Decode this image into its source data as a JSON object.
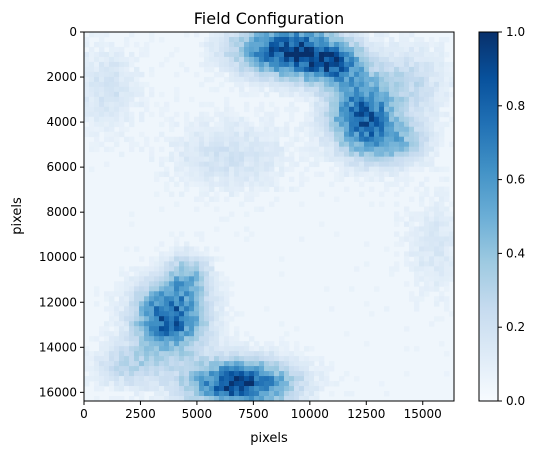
{
  "chart_data": {
    "type": "heatmap",
    "title": "Field Configuration",
    "xlabel": "pixels",
    "ylabel": "pixels",
    "xlim": [
      0,
      16384
    ],
    "ylim": [
      16384,
      0
    ],
    "xticks": [
      0,
      2500,
      5000,
      7500,
      10000,
      12500,
      15000
    ],
    "yticks": [
      0,
      2000,
      4000,
      6000,
      8000,
      10000,
      12000,
      14000,
      16000
    ],
    "colormap": "Blues",
    "colorbar": {
      "range": [
        0.0,
        1.0
      ],
      "ticks": [
        "0.0",
        "0.2",
        "0.4",
        "0.6",
        "0.8",
        "1.0"
      ]
    },
    "field_description": "Smooth random field with dense blue clusters near the top centre, upper right, lower left and bottom centre on a mostly pale background.",
    "clusters": [
      {
        "x": 9000,
        "y": 800,
        "sx": 2200,
        "sy": 1100,
        "amp": 0.85
      },
      {
        "x": 11000,
        "y": 1500,
        "sx": 1400,
        "sy": 900,
        "amp": 0.55
      },
      {
        "x": 12300,
        "y": 3700,
        "sx": 1400,
        "sy": 1600,
        "amp": 0.75
      },
      {
        "x": 13800,
        "y": 4900,
        "sx": 1400,
        "sy": 1000,
        "amp": 0.35
      },
      {
        "x": 3800,
        "y": 12700,
        "sx": 1500,
        "sy": 1500,
        "amp": 0.8
      },
      {
        "x": 4600,
        "y": 10800,
        "sx": 900,
        "sy": 900,
        "amp": 0.35
      },
      {
        "x": 6900,
        "y": 15600,
        "sx": 2200,
        "sy": 1000,
        "amp": 0.9
      },
      {
        "x": 2000,
        "y": 14800,
        "sx": 1400,
        "sy": 900,
        "amp": 0.25
      },
      {
        "x": 6500,
        "y": 5500,
        "sx": 2500,
        "sy": 1500,
        "amp": 0.15
      },
      {
        "x": 14500,
        "y": 2200,
        "sx": 1500,
        "sy": 1500,
        "amp": 0.2
      },
      {
        "x": 1000,
        "y": 2500,
        "sx": 1400,
        "sy": 1700,
        "amp": 0.15
      },
      {
        "x": 15500,
        "y": 9500,
        "sx": 1200,
        "sy": 2000,
        "amp": 0.12
      }
    ]
  }
}
